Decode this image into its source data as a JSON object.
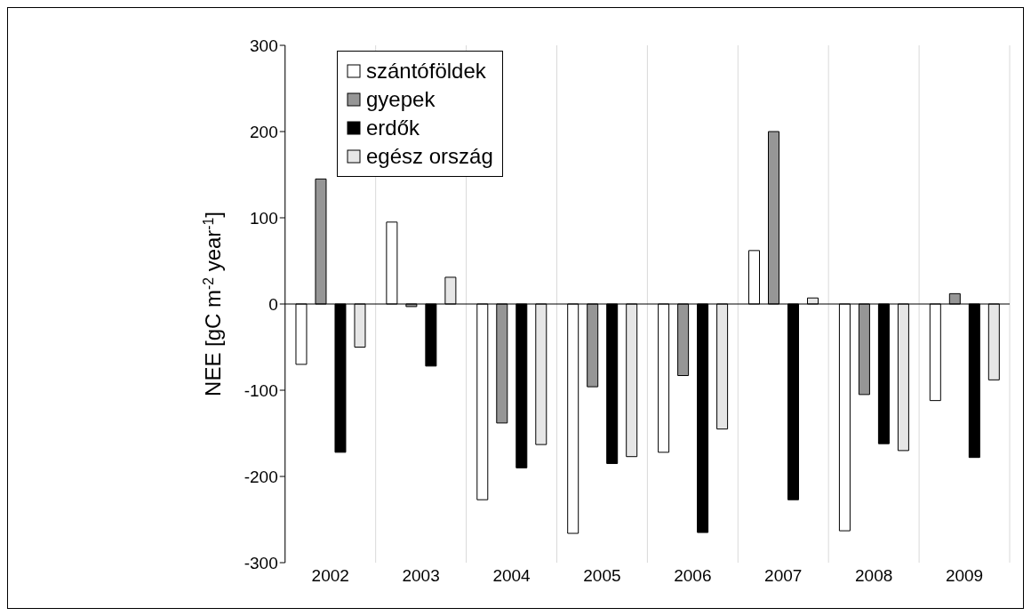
{
  "chart_data": {
    "type": "bar",
    "ylabel": "NEE [gC m$^{-2}$ year$^{-1}$]",
    "categories": [
      "2002",
      "2003",
      "2004",
      "2005",
      "2006",
      "2007",
      "2008",
      "2009"
    ],
    "series": [
      {
        "name": "szántóföldek",
        "color": "#ffffff",
        "values": [
          -70,
          95,
          -227,
          -266,
          -172,
          62,
          -263,
          -112
        ]
      },
      {
        "name": "gyepek",
        "color": "#969696",
        "values": [
          145,
          -3,
          -138,
          -96,
          -83,
          200,
          -105,
          12
        ]
      },
      {
        "name": "erdők",
        "color": "#000000",
        "values": [
          -172,
          -72,
          -190,
          -185,
          -265,
          -227,
          -162,
          -178
        ]
      },
      {
        "name": "egész ország",
        "color": "#e6e6e6",
        "values": [
          -50,
          31,
          -163,
          -177,
          -145,
          7,
          -170,
          -88
        ]
      }
    ],
    "ylim": [
      -300,
      300
    ],
    "yticks": [
      -300,
      -200,
      -100,
      0,
      100,
      200,
      300
    ],
    "grid": "x",
    "legend": "top"
  }
}
